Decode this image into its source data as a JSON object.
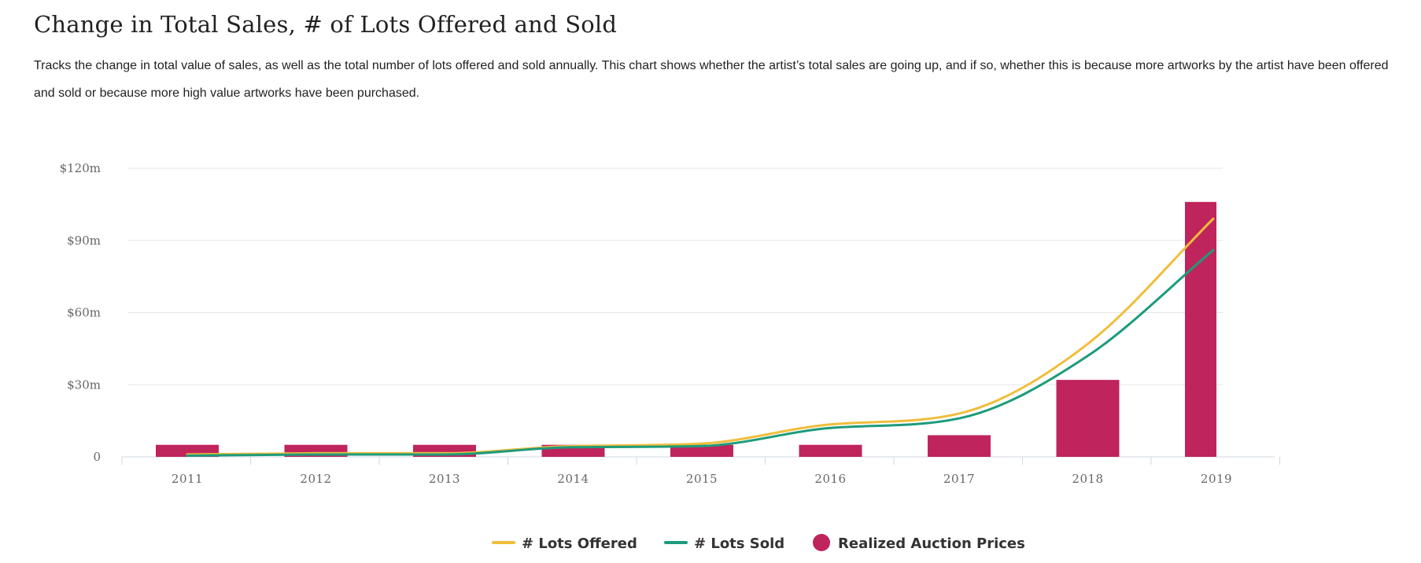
{
  "header": {
    "title": "Change in Total Sales, # of Lots Offered and Sold",
    "description": "Tracks the change in total value of sales, as well as the total number of lots offered and sold annually. This chart shows whether the artist’s total sales are going up, and if so, whether this is because more artworks by the artist have been offered and sold or because more high value artworks have been purchased."
  },
  "colors": {
    "lots_offered": "#f0be3c",
    "lots_sold": "#1d9b7c",
    "realized_prices": "#c0245c",
    "grid": "#e6e6e6",
    "axis": "#cfd8e3"
  },
  "chart_data": {
    "type": "bar",
    "categories": [
      "2011",
      "2012",
      "2013",
      "2014",
      "2015",
      "2016",
      "2017",
      "2018",
      "2019"
    ],
    "ylim": [
      0,
      120
    ],
    "yticks": [
      {
        "value": 0,
        "label": "0"
      },
      {
        "value": 30,
        "label": "$30m"
      },
      {
        "value": 60,
        "label": "$60m"
      },
      {
        "value": 90,
        "label": "$90m"
      },
      {
        "value": 120,
        "label": "$120m"
      }
    ],
    "grid": true,
    "legend_position": "bottom-center",
    "series": [
      {
        "name": "# Lots Offered",
        "kind": "line",
        "color": "#f0be3c",
        "values": [
          1,
          1.5,
          1.5,
          4.5,
          5.5,
          13.5,
          18,
          47,
          99
        ]
      },
      {
        "name": "# Lots Sold",
        "kind": "line",
        "color": "#1d9b7c",
        "values": [
          0.5,
          1,
          1,
          4,
          4.5,
          12,
          16,
          42,
          86
        ]
      },
      {
        "name": "Realized Auction Prices",
        "kind": "bar",
        "color": "#c0245c",
        "values": [
          5,
          5,
          5,
          5,
          5,
          5,
          9,
          32,
          106
        ]
      }
    ]
  }
}
